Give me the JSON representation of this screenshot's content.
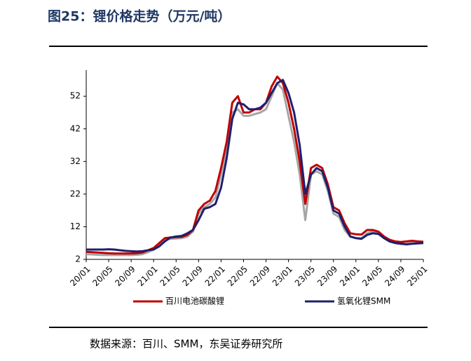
{
  "chart_data": {
    "type": "line",
    "title": "图25：锂价格走势（万元/吨）",
    "source": "数据来源：百川、SMM，东吴证券研究所",
    "categories": [
      "20/01",
      null,
      null,
      null,
      "20/05",
      null,
      null,
      null,
      "20/09",
      null,
      null,
      null,
      "21/01",
      null,
      null,
      null,
      "21/05",
      null,
      null,
      null,
      "21/09",
      null,
      null,
      null,
      "22/01",
      null,
      null,
      null,
      "22/05",
      null,
      null,
      null,
      "22/09",
      null,
      null,
      null,
      "23/01",
      null,
      null,
      null,
      "23/05",
      null,
      null,
      null,
      "23/09",
      null,
      null,
      null,
      "24/01",
      null,
      null,
      null,
      "24/05",
      null,
      null,
      null,
      "24/09",
      null,
      null,
      null,
      "25/01"
    ],
    "ylim": [
      2,
      60
    ],
    "yticks": [
      2,
      12,
      22,
      32,
      42,
      52
    ],
    "series": [
      {
        "name": "百川电池碳酸锂",
        "color": "#c00000",
        "values": [
          4.3,
          4.2,
          4.1,
          4.0,
          3.9,
          3.8,
          3.8,
          3.8,
          3.8,
          3.9,
          4.1,
          4.8,
          5.5,
          7,
          8.5,
          8.7,
          8.8,
          8.9,
          9.5,
          11,
          17,
          19,
          20,
          23,
          30,
          38,
          50,
          52,
          47,
          47,
          48,
          48,
          50,
          55,
          58,
          56,
          50,
          42,
          32,
          19,
          30,
          31,
          30,
          25,
          18,
          17,
          13,
          10,
          9.7,
          9.6,
          11,
          11,
          10.5,
          9,
          8,
          7.5,
          7.3,
          7.5,
          7.7,
          7.5,
          7.4
        ]
      },
      {
        "name": "氢氧化锂SMM",
        "color": "#1f1f6e",
        "values": [
          5,
          5,
          5,
          5,
          5.1,
          5,
          4.8,
          4.6,
          4.5,
          4.4,
          4.5,
          4.8,
          5,
          6,
          7.5,
          8.7,
          9,
          9.2,
          10,
          11,
          14,
          17.5,
          18,
          19,
          24,
          33,
          45,
          50,
          49.5,
          48,
          48,
          48.5,
          50,
          53,
          56,
          57,
          53,
          47,
          37,
          22,
          28,
          30,
          29,
          24,
          17,
          16,
          12,
          9,
          8.5,
          8.3,
          9.5,
          10,
          9.8,
          8.5,
          7.5,
          7,
          6.8,
          6.6,
          6.8,
          6.9,
          7
        ]
      },
      {
        "color": "#a6a6a6",
        "values": [
          3.6,
          3.5,
          3.4,
          3.3,
          3.3,
          3.3,
          3.3,
          3.3,
          3.3,
          3.4,
          3.6,
          4.2,
          5,
          6.5,
          8,
          8.3,
          8.4,
          8.5,
          9,
          10.5,
          16,
          18,
          19,
          21,
          28,
          36,
          47,
          48,
          46,
          46,
          46.5,
          47,
          48,
          52,
          56,
          54,
          46,
          38,
          28,
          14,
          28,
          29,
          28,
          23,
          16,
          15,
          11,
          9,
          8.5,
          8.5,
          10,
          10.5,
          10,
          8.5,
          7.5,
          7,
          6.8,
          6.8,
          7,
          7,
          7.2
        ]
      }
    ]
  }
}
